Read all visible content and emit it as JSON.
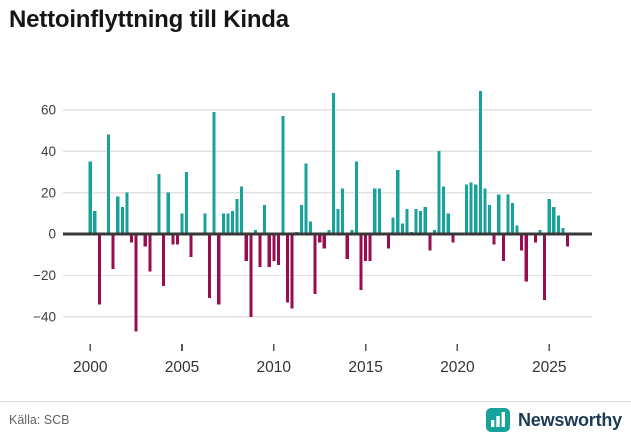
{
  "title": "Nettoinflyttning till Kinda",
  "footer": {
    "source_label": "Källa: SCB",
    "brand": "Newsworthy"
  },
  "chart_data": {
    "type": "bar",
    "title": "Nettoinflyttning till Kinda",
    "period": "quarterly",
    "start_year": 2000,
    "x_tick_years": [
      2000,
      2005,
      2010,
      2015,
      2020,
      2025
    ],
    "y_ticks": [
      60,
      40,
      20,
      0,
      -20,
      -40
    ],
    "ylim": [
      -52,
      70
    ],
    "grid": true,
    "legend": "none",
    "colors": {
      "positive": "#17a29b",
      "negative": "#970d4f",
      "zero_line": "#383838",
      "gridline": "#e2e2e2"
    },
    "values": [
      35,
      11,
      -34,
      0,
      48,
      -17,
      18,
      13,
      20,
      -4,
      -47,
      0,
      -6,
      -18,
      0,
      29,
      -25,
      20,
      -5,
      -5,
      10,
      30,
      -11,
      0,
      0,
      10,
      -31,
      59,
      -34,
      10,
      10,
      11,
      17,
      23,
      -13,
      -40,
      2,
      -16,
      14,
      -16,
      -13,
      -15,
      57,
      -33,
      -36,
      1,
      14,
      34,
      6,
      -29,
      -4,
      -7,
      2,
      68,
      12,
      22,
      -12,
      2,
      35,
      -27,
      -13,
      -13,
      22,
      22,
      0,
      -7,
      8,
      31,
      5,
      12,
      1,
      12,
      11,
      13,
      -8,
      2,
      40,
      23,
      10,
      -4,
      0,
      0,
      24,
      25,
      24,
      69,
      22,
      14,
      -5,
      19,
      -13,
      19,
      15,
      4,
      -8,
      -23,
      0,
      -4,
      2,
      -32,
      17,
      13,
      9,
      3,
      -6
    ]
  }
}
